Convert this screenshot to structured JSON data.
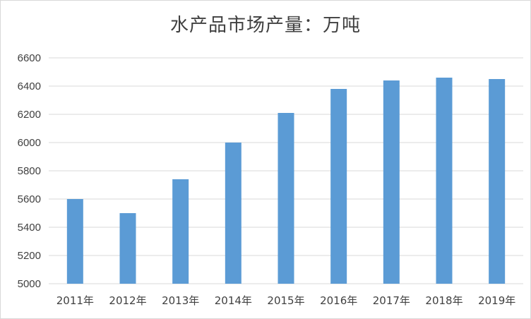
{
  "chart_data": {
    "type": "bar",
    "title": "水产品市场产量：万吨",
    "categories": [
      "2011年",
      "2012年",
      "2013年",
      "2014年",
      "2015年",
      "2016年",
      "2017年",
      "2018年",
      "2019年"
    ],
    "series": [
      {
        "values": [
          5600,
          5500,
          5740,
          6000,
          6210,
          6380,
          6440,
          6460,
          6450
        ]
      }
    ],
    "ylim": [
      5000,
      6600
    ],
    "yticks": [
      5000,
      5200,
      5400,
      5600,
      5800,
      6000,
      6200,
      6400,
      6600
    ],
    "xlabel": "",
    "ylabel": "",
    "grid": true,
    "bar_color": "#5b9bd5",
    "grid_color": "#d9d9d9"
  }
}
